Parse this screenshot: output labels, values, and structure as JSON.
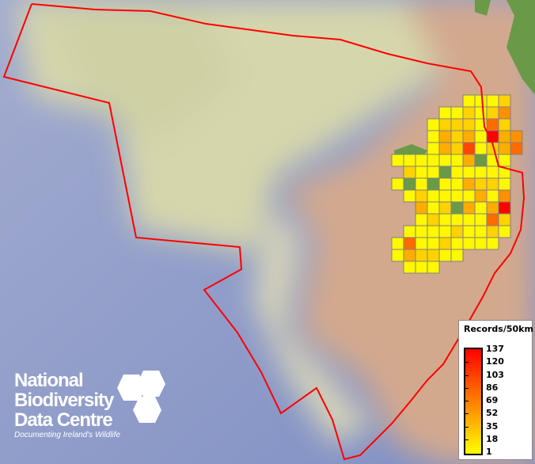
{
  "map": {
    "colors": {
      "deep_ocean": "#8e9cc8",
      "shelf": "#d9d8ae",
      "land": "#d2a68c",
      "vegetation": "#6a9a48",
      "boundary": "#ff0000",
      "cell_border": "#808080"
    },
    "grid_values": [
      [
        null,
        null,
        null,
        null,
        null,
        null,
        5,
        5,
        5,
        25,
        null
      ],
      [
        null,
        null,
        null,
        null,
        5,
        5,
        25,
        5,
        25,
        60,
        null
      ],
      [
        null,
        null,
        null,
        5,
        25,
        25,
        25,
        5,
        80,
        25,
        null
      ],
      [
        null,
        null,
        null,
        5,
        45,
        25,
        45,
        5,
        137,
        45,
        60
      ],
      [
        null,
        null,
        null,
        5,
        45,
        25,
        100,
        5,
        25,
        45,
        80
      ],
      [
        5,
        5,
        5,
        5,
        5,
        5,
        45,
        0,
        5,
        5,
        null
      ],
      [
        null,
        25,
        5,
        5,
        0,
        5,
        5,
        5,
        5,
        5,
        null
      ],
      [
        5,
        0,
        5,
        0,
        5,
        5,
        45,
        25,
        25,
        5,
        null
      ],
      [
        null,
        5,
        25,
        5,
        5,
        5,
        5,
        45,
        5,
        60,
        null
      ],
      [
        null,
        null,
        45,
        5,
        25,
        0,
        45,
        5,
        45,
        137,
        null
      ],
      [
        null,
        null,
        5,
        25,
        5,
        5,
        5,
        5,
        80,
        25,
        null
      ],
      [
        null,
        5,
        5,
        5,
        5,
        25,
        5,
        5,
        25,
        5,
        null
      ],
      [
        5,
        80,
        5,
        5,
        25,
        5,
        5,
        5,
        5,
        null,
        null
      ],
      [
        5,
        45,
        25,
        25,
        5,
        5,
        null,
        null,
        null,
        null,
        null
      ],
      [
        null,
        5,
        5,
        5,
        null,
        null,
        null,
        null,
        null,
        null,
        null
      ]
    ]
  },
  "legend": {
    "title": "Records/50km",
    "ticks": [
      "137",
      "120",
      "103",
      "86",
      "69",
      "52",
      "35",
      "18",
      "1"
    ],
    "min": 1,
    "max": 137,
    "ramp_colors": [
      "#ffff00",
      "#ff8000",
      "#ff0000"
    ]
  },
  "logo": {
    "lines": [
      "National",
      "Biodiversity",
      "Data Centre"
    ],
    "tagline": "Documenting Ireland's Wildlife"
  }
}
